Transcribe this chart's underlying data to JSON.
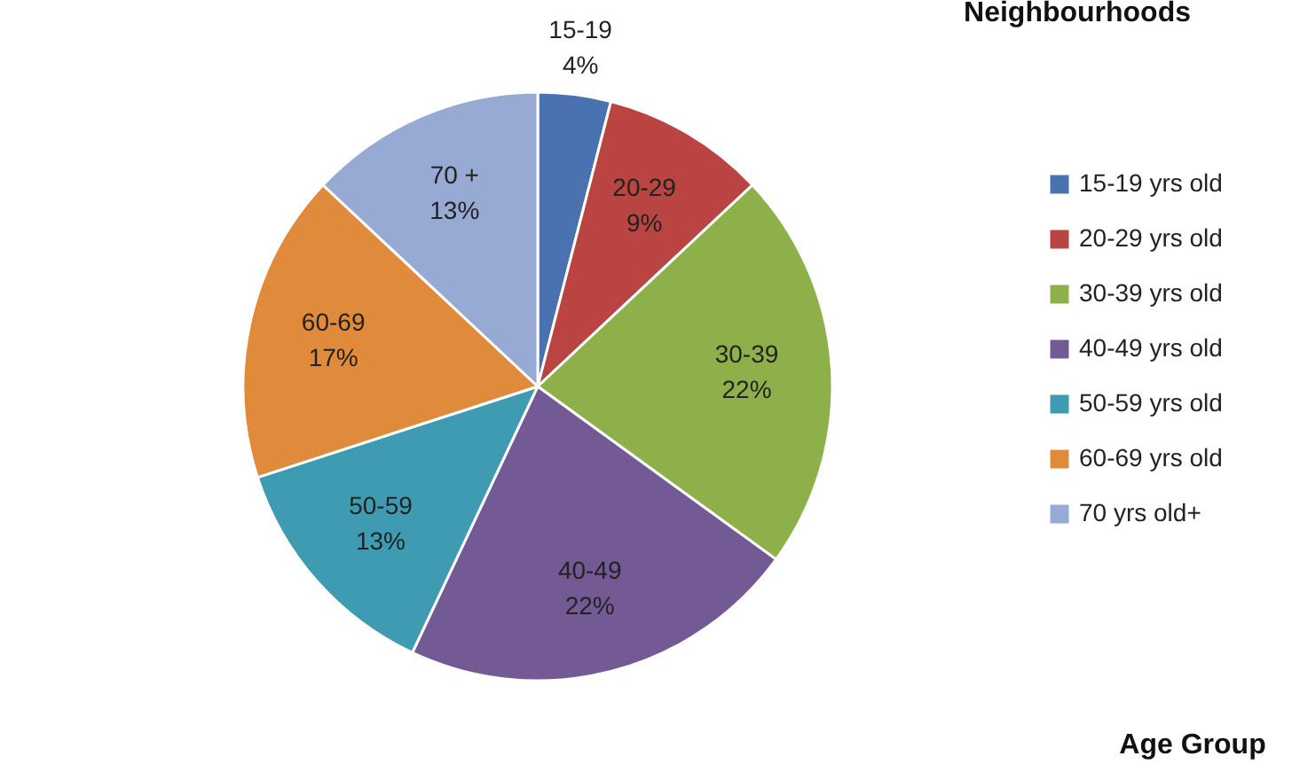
{
  "chart_data": {
    "type": "pie",
    "categories": [
      "15-19 yrs old",
      "20-29 yrs old",
      "30-39 yrs old",
      "40-49 yrs old",
      "50-59 yrs old",
      "60-69 yrs old",
      "70 yrs old+"
    ],
    "values": [
      4,
      9,
      22,
      22,
      13,
      17,
      13
    ],
    "colors": [
      "#4a72b0",
      "#b94441",
      "#8db04a",
      "#735a94",
      "#3f9bb2",
      "#e08a3c",
      "#96aad3"
    ],
    "value_labels": [
      "15-19\n4%",
      "20-29\n9%",
      "30-39\n22%",
      "40-49\n22%",
      "50-59\n13%",
      "60-69\n17%",
      "70 +\n13%"
    ],
    "legend": "right",
    "annotations": [
      "Neighbourhoods",
      "Age Group"
    ]
  }
}
